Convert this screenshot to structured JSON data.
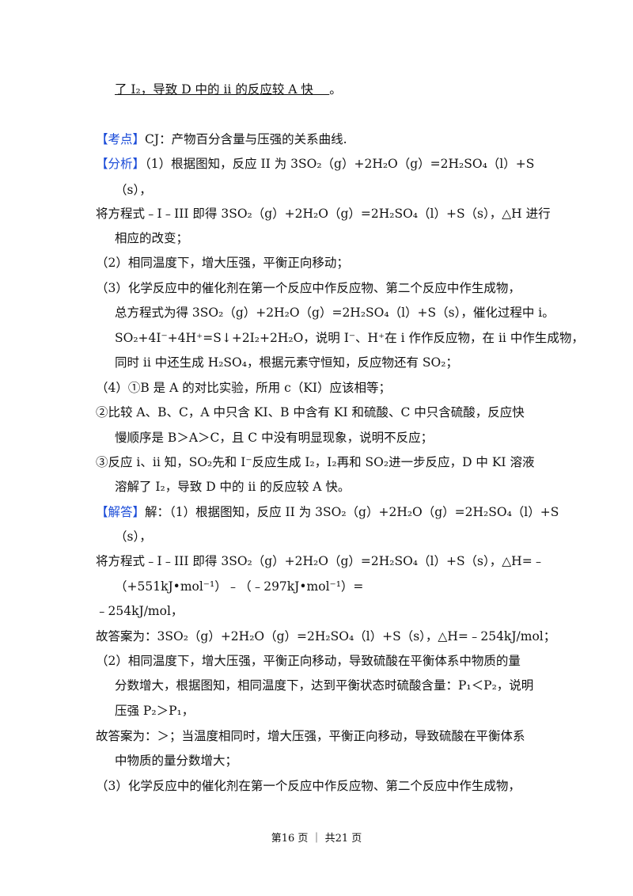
{
  "lines": [
    {
      "tag": "",
      "text": "了 I₂，导致 D 中的 ii 的反应较 A 快　 ",
      "after": "。"
    },
    {
      "tag": "【考点】",
      "text": "CJ：产物百分含量与压强的关系曲线."
    },
    {
      "tag": "【分析】",
      "text": "（1）根据图知，反应 II 为 3SO₂（g）+2H₂O（g）=2H₂SO₄（l）+S"
    },
    {
      "tag": "",
      "text": "（s），"
    },
    {
      "tag": "",
      "text": "将方程式﹣I﹣III 即得 3SO₂（g）+2H₂O（g）=2H₂SO₄（l）+S（s），△H 进行"
    },
    {
      "tag": "",
      "text": "相应的改变；"
    },
    {
      "tag": "",
      "text": "（2）相同温度下，增大压强，平衡正向移动；"
    },
    {
      "tag": "",
      "text": "（3）化学反应中的催化剂在第一个反应中作反应物、第二个反应中作生成物，"
    },
    {
      "tag": "",
      "text": "总方程式为得 3SO₂（g）+2H₂O（g）=2H₂SO₄（l）+S（s），催化过程中 i。"
    },
    {
      "tag": "",
      "text": "SO₂+4I⁻+4H⁺=S↓+2I₂+2H₂O，说明 I⁻、H⁺在 i 作作反应物，在 ii 中作生成物，"
    },
    {
      "tag": "",
      "text": "同时 ii 中还生成 H₂SO₄，根据元素守恒知，反应物还有 SO₂；"
    },
    {
      "tag": "",
      "text": "（4）①B 是 A 的对比实验，所用 c（KI）应该相等；"
    },
    {
      "tag": "",
      "text": "②比较 A、B、C，A 中只含 KI、B 中含有 KI 和硫酸、C 中只含硫酸，反应快"
    },
    {
      "tag": "",
      "text": "慢顺序是 B＞A＞C，且 C 中没有明显现象，说明不反应；"
    },
    {
      "tag": "",
      "text": "③反应 i、ii 知，SO₂先和 I⁻反应生成 I₂，I₂再和 SO₂进一步反应，D 中 KI 溶液"
    },
    {
      "tag": "",
      "text": "溶解了 I₂，导致 D 中的 ii 的反应较 A 快。"
    },
    {
      "tag": "【解答】",
      "text": "解：（1）根据图知，反应 II 为 3SO₂（g）+2H₂O（g）=2H₂SO₄（l）+S"
    },
    {
      "tag": "",
      "text": "（s），"
    },
    {
      "tag": "",
      "text": "将方程式﹣I﹣III 即得 3SO₂（g）+2H₂O（g）=2H₂SO₄（l）+S（s），△H=﹣"
    },
    {
      "tag": "",
      "text": "（+551kJ•mol⁻¹）﹣（﹣297kJ•mol⁻¹）="
    },
    {
      "tag": "",
      "text": "﹣254kJ/mol，"
    },
    {
      "tag": "",
      "text": "故答案为：3SO₂（g）+2H₂O（g）=2H₂SO₄（l）+S（s），△H=﹣254kJ/mol；"
    },
    {
      "tag": "",
      "text": "（2）相同温度下，增大压强，平衡正向移动，导致硫酸在平衡体系中物质的量"
    },
    {
      "tag": "",
      "text": "分数增大，根据图知，相同温度下，达到平衡状态时硫酸含量：P₁＜P₂，说明"
    },
    {
      "tag": "",
      "text": "压强 P₂＞P₁，"
    },
    {
      "tag": "",
      "text": "故答案为：＞；当温度相同时，增大压强，平衡正向移动，导致硫酸在平衡体系"
    },
    {
      "tag": "",
      "text": "中物质的量分数增大；"
    },
    {
      "tag": "",
      "text": "（3）化学反应中的催化剂在第一个反应中作反应物、第二个反应中作生成物，"
    }
  ],
  "footer": "第16 页 ｜ 共21 页",
  "colors": {
    "tag": "#1a4bd8"
  }
}
